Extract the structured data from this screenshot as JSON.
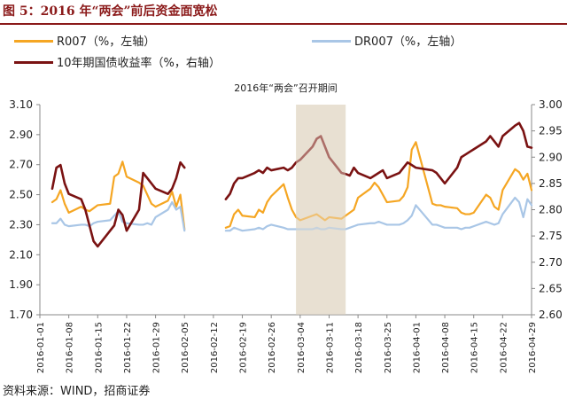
{
  "title": "图 5：2016 年“两会”前后资金面宽松",
  "source": "资料来源：WIND，招商证券",
  "chart_data": {
    "type": "line",
    "annotation": "2016年“两会”召开期间",
    "shaded_period": [
      "2016-03-03",
      "2016-03-15"
    ],
    "x_tick_labels": [
      "2016-01-01",
      "2016-01-08",
      "2016-01-15",
      "2016-01-22",
      "2016-01-29",
      "2016-02-05",
      "2016-02-12",
      "2016-02-19",
      "2016-02-26",
      "2016-03-04",
      "2016-03-11",
      "2016-03-18",
      "2016-03-25",
      "2016-04-01",
      "2016-04-08",
      "2016-04-15",
      "2016-04-22",
      "2016-04-29"
    ],
    "x_range": [
      "2016-01-01",
      "2016-04-29"
    ],
    "y_left": {
      "ticks": [
        "1.70",
        "1.90",
        "2.10",
        "2.30",
        "2.50",
        "2.70",
        "2.90",
        "3.10"
      ],
      "range": [
        1.7,
        3.1
      ]
    },
    "y_right": {
      "ticks": [
        "2.60",
        "2.65",
        "2.70",
        "2.75",
        "2.80",
        "2.85",
        "2.90",
        "2.95",
        "3.00"
      ],
      "range": [
        2.6,
        3.0
      ]
    },
    "series": [
      {
        "name": "R007（%，左轴）",
        "axis": "left",
        "color": "#f5a623",
        "points": [
          [
            "2016-01-04",
            2.45
          ],
          [
            "2016-01-05",
            2.47
          ],
          [
            "2016-01-06",
            2.53
          ],
          [
            "2016-01-07",
            2.44
          ],
          [
            "2016-01-08",
            2.38
          ],
          [
            "2016-01-11",
            2.42
          ],
          [
            "2016-01-12",
            2.4
          ],
          [
            "2016-01-13",
            2.39
          ],
          [
            "2016-01-14",
            2.41
          ],
          [
            "2016-01-15",
            2.43
          ],
          [
            "2016-01-18",
            2.44
          ],
          [
            "2016-01-19",
            2.62
          ],
          [
            "2016-01-20",
            2.64
          ],
          [
            "2016-01-21",
            2.72
          ],
          [
            "2016-01-22",
            2.62
          ],
          [
            "2016-01-25",
            2.58
          ],
          [
            "2016-01-26",
            2.56
          ],
          [
            "2016-01-27",
            2.5
          ],
          [
            "2016-01-28",
            2.44
          ],
          [
            "2016-01-29",
            2.42
          ],
          [
            "2016-02-01",
            2.46
          ],
          [
            "2016-02-02",
            2.52
          ],
          [
            "2016-02-03",
            2.42
          ],
          [
            "2016-02-04",
            2.5
          ],
          [
            "2016-02-05",
            2.27
          ],
          [
            "2016-02-15",
            2.28
          ],
          [
            "2016-02-16",
            2.29
          ],
          [
            "2016-02-17",
            2.37
          ],
          [
            "2016-02-18",
            2.4
          ],
          [
            "2016-02-19",
            2.36
          ],
          [
            "2016-02-22",
            2.35
          ],
          [
            "2016-02-23",
            2.4
          ],
          [
            "2016-02-24",
            2.38
          ],
          [
            "2016-02-25",
            2.45
          ],
          [
            "2016-02-26",
            2.49
          ],
          [
            "2016-02-29",
            2.57
          ],
          [
            "2016-03-01",
            2.48
          ],
          [
            "2016-03-02",
            2.4
          ],
          [
            "2016-03-03",
            2.35
          ],
          [
            "2016-03-04",
            2.33
          ],
          [
            "2016-03-07",
            2.36
          ],
          [
            "2016-03-08",
            2.37
          ],
          [
            "2016-03-09",
            2.35
          ],
          [
            "2016-03-10",
            2.33
          ],
          [
            "2016-03-11",
            2.35
          ],
          [
            "2016-03-14",
            2.34
          ],
          [
            "2016-03-15",
            2.36
          ],
          [
            "2016-03-16",
            2.38
          ],
          [
            "2016-03-17",
            2.4
          ],
          [
            "2016-03-18",
            2.48
          ],
          [
            "2016-03-21",
            2.54
          ],
          [
            "2016-03-22",
            2.58
          ],
          [
            "2016-03-23",
            2.55
          ],
          [
            "2016-03-24",
            2.5
          ],
          [
            "2016-03-25",
            2.45
          ],
          [
            "2016-03-28",
            2.46
          ],
          [
            "2016-03-29",
            2.49
          ],
          [
            "2016-03-30",
            2.55
          ],
          [
            "2016-03-31",
            2.8
          ],
          [
            "2016-04-01",
            2.85
          ],
          [
            "2016-04-05",
            2.44
          ],
          [
            "2016-04-06",
            2.43
          ],
          [
            "2016-04-07",
            2.43
          ],
          [
            "2016-04-08",
            2.42
          ],
          [
            "2016-04-11",
            2.41
          ],
          [
            "2016-04-12",
            2.38
          ],
          [
            "2016-04-13",
            2.37
          ],
          [
            "2016-04-14",
            2.37
          ],
          [
            "2016-04-15",
            2.38
          ],
          [
            "2016-04-18",
            2.5
          ],
          [
            "2016-04-19",
            2.48
          ],
          [
            "2016-04-20",
            2.42
          ],
          [
            "2016-04-21",
            2.4
          ],
          [
            "2016-04-22",
            2.53
          ],
          [
            "2016-04-25",
            2.67
          ],
          [
            "2016-04-26",
            2.65
          ],
          [
            "2016-04-27",
            2.6
          ],
          [
            "2016-04-28",
            2.64
          ],
          [
            "2016-04-29",
            2.53
          ]
        ]
      },
      {
        "name": "DR007（%，左轴）",
        "axis": "left",
        "color": "#a9c6e6",
        "points": [
          [
            "2016-01-04",
            2.31
          ],
          [
            "2016-01-05",
            2.31
          ],
          [
            "2016-01-06",
            2.34
          ],
          [
            "2016-01-07",
            2.3
          ],
          [
            "2016-01-08",
            2.29
          ],
          [
            "2016-01-11",
            2.3
          ],
          [
            "2016-01-12",
            2.3
          ],
          [
            "2016-01-13",
            2.29
          ],
          [
            "2016-01-14",
            2.31
          ],
          [
            "2016-01-15",
            2.32
          ],
          [
            "2016-01-18",
            2.33
          ],
          [
            "2016-01-19",
            2.36
          ],
          [
            "2016-01-20",
            2.39
          ],
          [
            "2016-01-21",
            2.32
          ],
          [
            "2016-01-22",
            2.31
          ],
          [
            "2016-01-25",
            2.3
          ],
          [
            "2016-01-26",
            2.3
          ],
          [
            "2016-01-27",
            2.31
          ],
          [
            "2016-01-28",
            2.3
          ],
          [
            "2016-01-29",
            2.35
          ],
          [
            "2016-02-01",
            2.4
          ],
          [
            "2016-02-02",
            2.45
          ],
          [
            "2016-02-03",
            2.4
          ],
          [
            "2016-02-04",
            2.42
          ],
          [
            "2016-02-05",
            2.26
          ],
          [
            "2016-02-15",
            2.26
          ],
          [
            "2016-02-16",
            2.26
          ],
          [
            "2016-02-17",
            2.28
          ],
          [
            "2016-02-18",
            2.27
          ],
          [
            "2016-02-19",
            2.26
          ],
          [
            "2016-02-22",
            2.27
          ],
          [
            "2016-02-23",
            2.28
          ],
          [
            "2016-02-24",
            2.27
          ],
          [
            "2016-02-25",
            2.29
          ],
          [
            "2016-02-26",
            2.3
          ],
          [
            "2016-02-29",
            2.28
          ],
          [
            "2016-03-01",
            2.27
          ],
          [
            "2016-03-02",
            2.27
          ],
          [
            "2016-03-03",
            2.27
          ],
          [
            "2016-03-04",
            2.27
          ],
          [
            "2016-03-07",
            2.27
          ],
          [
            "2016-03-08",
            2.28
          ],
          [
            "2016-03-09",
            2.27
          ],
          [
            "2016-03-10",
            2.27
          ],
          [
            "2016-03-11",
            2.28
          ],
          [
            "2016-03-14",
            2.27
          ],
          [
            "2016-03-15",
            2.27
          ],
          [
            "2016-03-16",
            2.28
          ],
          [
            "2016-03-17",
            2.29
          ],
          [
            "2016-03-18",
            2.3
          ],
          [
            "2016-03-21",
            2.31
          ],
          [
            "2016-03-22",
            2.31
          ],
          [
            "2016-03-23",
            2.32
          ],
          [
            "2016-03-24",
            2.31
          ],
          [
            "2016-03-25",
            2.3
          ],
          [
            "2016-03-28",
            2.3
          ],
          [
            "2016-03-29",
            2.31
          ],
          [
            "2016-03-30",
            2.33
          ],
          [
            "2016-03-31",
            2.36
          ],
          [
            "2016-04-01",
            2.43
          ],
          [
            "2016-04-05",
            2.3
          ],
          [
            "2016-04-06",
            2.3
          ],
          [
            "2016-04-07",
            2.29
          ],
          [
            "2016-04-08",
            2.28
          ],
          [
            "2016-04-11",
            2.28
          ],
          [
            "2016-04-12",
            2.27
          ],
          [
            "2016-04-13",
            2.28
          ],
          [
            "2016-04-14",
            2.28
          ],
          [
            "2016-04-15",
            2.29
          ],
          [
            "2016-04-18",
            2.32
          ],
          [
            "2016-04-19",
            2.31
          ],
          [
            "2016-04-20",
            2.3
          ],
          [
            "2016-04-21",
            2.31
          ],
          [
            "2016-04-22",
            2.37
          ],
          [
            "2016-04-25",
            2.48
          ],
          [
            "2016-04-26",
            2.45
          ],
          [
            "2016-04-27",
            2.35
          ],
          [
            "2016-04-28",
            2.47
          ],
          [
            "2016-04-29",
            2.43
          ]
        ]
      },
      {
        "name": "10年期国债收益率（%，右轴）",
        "axis": "right",
        "color": "#7a1212",
        "points": [
          [
            "2016-01-04",
            2.84
          ],
          [
            "2016-01-05",
            2.88
          ],
          [
            "2016-01-06",
            2.885
          ],
          [
            "2016-01-07",
            2.85
          ],
          [
            "2016-01-08",
            2.83
          ],
          [
            "2016-01-11",
            2.82
          ],
          [
            "2016-01-12",
            2.8
          ],
          [
            "2016-01-13",
            2.77
          ],
          [
            "2016-01-14",
            2.74
          ],
          [
            "2016-01-15",
            2.73
          ],
          [
            "2016-01-18",
            2.76
          ],
          [
            "2016-01-19",
            2.77
          ],
          [
            "2016-01-20",
            2.8
          ],
          [
            "2016-01-21",
            2.79
          ],
          [
            "2016-01-22",
            2.76
          ],
          [
            "2016-01-25",
            2.8
          ],
          [
            "2016-01-26",
            2.87
          ],
          [
            "2016-01-27",
            2.86
          ],
          [
            "2016-01-28",
            2.85
          ],
          [
            "2016-01-29",
            2.84
          ],
          [
            "2016-02-01",
            2.83
          ],
          [
            "2016-02-02",
            2.84
          ],
          [
            "2016-02-03",
            2.86
          ],
          [
            "2016-02-04",
            2.89
          ],
          [
            "2016-02-05",
            2.88
          ],
          [
            "2016-02-15",
            2.82
          ],
          [
            "2016-02-16",
            2.83
          ],
          [
            "2016-02-17",
            2.85
          ],
          [
            "2016-02-18",
            2.86
          ],
          [
            "2016-02-19",
            2.86
          ],
          [
            "2016-02-22",
            2.87
          ],
          [
            "2016-02-23",
            2.875
          ],
          [
            "2016-02-24",
            2.87
          ],
          [
            "2016-02-25",
            2.88
          ],
          [
            "2016-02-26",
            2.875
          ],
          [
            "2016-02-29",
            2.88
          ],
          [
            "2016-03-01",
            2.875
          ],
          [
            "2016-03-02",
            2.88
          ],
          [
            "2016-03-03",
            2.89
          ],
          [
            "2016-03-04",
            2.895
          ],
          [
            "2016-03-07",
            2.92
          ],
          [
            "2016-03-08",
            2.935
          ],
          [
            "2016-03-09",
            2.94
          ],
          [
            "2016-03-10",
            2.92
          ],
          [
            "2016-03-11",
            2.9
          ],
          [
            "2016-03-14",
            2.87
          ],
          [
            "2016-03-15",
            2.868
          ],
          [
            "2016-03-16",
            2.865
          ],
          [
            "2016-03-17",
            2.88
          ],
          [
            "2016-03-18",
            2.87
          ],
          [
            "2016-03-21",
            2.86
          ],
          [
            "2016-03-22",
            2.865
          ],
          [
            "2016-03-23",
            2.87
          ],
          [
            "2016-03-24",
            2.875
          ],
          [
            "2016-03-25",
            2.86
          ],
          [
            "2016-03-28",
            2.87
          ],
          [
            "2016-03-29",
            2.88
          ],
          [
            "2016-03-30",
            2.89
          ],
          [
            "2016-03-31",
            2.885
          ],
          [
            "2016-04-01",
            2.88
          ],
          [
            "2016-04-05",
            2.875
          ],
          [
            "2016-04-06",
            2.87
          ],
          [
            "2016-04-07",
            2.86
          ],
          [
            "2016-04-08",
            2.85
          ],
          [
            "2016-04-11",
            2.88
          ],
          [
            "2016-04-12",
            2.9
          ],
          [
            "2016-04-13",
            2.905
          ],
          [
            "2016-04-14",
            2.91
          ],
          [
            "2016-04-15",
            2.915
          ],
          [
            "2016-04-18",
            2.93
          ],
          [
            "2016-04-19",
            2.94
          ],
          [
            "2016-04-20",
            2.93
          ],
          [
            "2016-04-21",
            2.92
          ],
          [
            "2016-04-22",
            2.94
          ],
          [
            "2016-04-25",
            2.96
          ],
          [
            "2016-04-26",
            2.965
          ],
          [
            "2016-04-27",
            2.95
          ],
          [
            "2016-04-28",
            2.92
          ],
          [
            "2016-04-29",
            2.918
          ]
        ]
      }
    ]
  }
}
